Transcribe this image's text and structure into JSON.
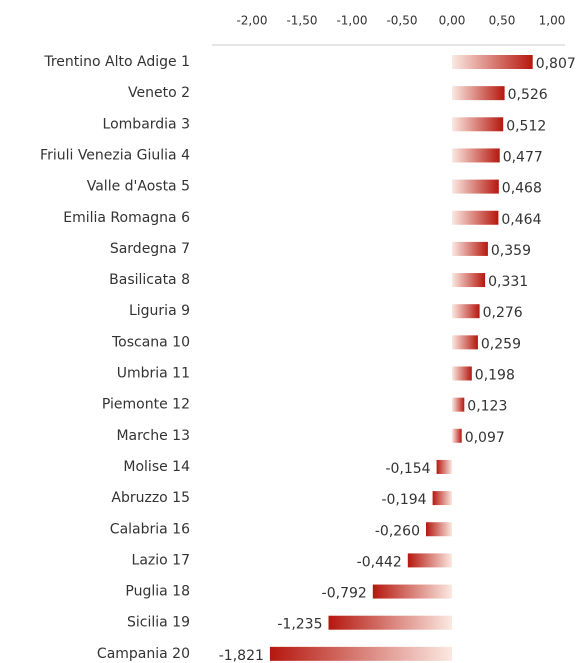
{
  "chart_data": {
    "type": "bar",
    "orientation": "horizontal",
    "categories": [
      "Trentino Alto Adige  1",
      "Veneto  2",
      "Lombardia  3",
      "Friuli Venezia Giulia  4",
      "Valle d'Aosta  5",
      "Emilia Romagna  6",
      "Sardegna  7",
      "Basilicata  8",
      "Liguria  9",
      "Toscana  10",
      "Umbria  11",
      "Piemonte  12",
      "Marche  13",
      "Molise  14",
      "Abruzzo  15",
      "Calabria  16",
      "Lazio  17",
      "Puglia  18",
      "Sicilia  19",
      "Campania  20"
    ],
    "values": [
      0.807,
      0.526,
      0.512,
      0.477,
      0.468,
      0.464,
      0.359,
      0.331,
      0.276,
      0.259,
      0.198,
      0.123,
      0.097,
      -0.154,
      -0.194,
      -0.26,
      -0.442,
      -0.792,
      -1.235,
      -1.821
    ],
    "value_labels": [
      "0,807",
      "0,526",
      "0,512",
      "0,477",
      "0,468",
      "0,464",
      "0,359",
      "0,331",
      "0,276",
      "0,259",
      "0,198",
      "0,123",
      "0,097",
      "-0,154",
      "-0,194",
      "-0,260",
      "-0,442",
      "-0,792",
      "-1,235",
      "-1,821"
    ],
    "color": "#b5170e",
    "xlim": [
      -2.4,
      1.13
    ],
    "xticks": [
      {
        "value": -2,
        "label": "-2,00"
      },
      {
        "value": -1.5,
        "label": "-1,50"
      },
      {
        "value": -1,
        "label": "-1,00"
      },
      {
        "value": -0.5,
        "label": "-0,50"
      },
      {
        "value": 0,
        "label": "0,00"
      },
      {
        "value": 0.5,
        "label": "0,50"
      },
      {
        "value": 1,
        "label": "1,00"
      }
    ]
  }
}
